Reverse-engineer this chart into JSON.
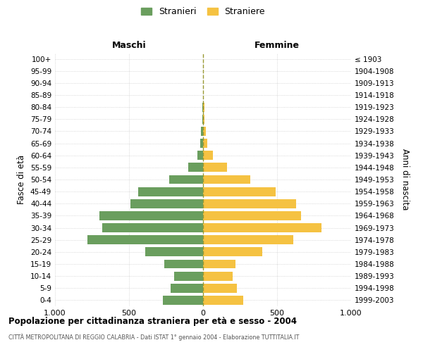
{
  "age_groups": [
    "100+",
    "95-99",
    "90-94",
    "85-89",
    "80-84",
    "75-79",
    "70-74",
    "65-69",
    "60-64",
    "55-59",
    "50-54",
    "45-49",
    "40-44",
    "35-39",
    "30-34",
    "25-29",
    "20-24",
    "15-19",
    "10-14",
    "5-9",
    "0-4"
  ],
  "birth_years": [
    "≤ 1903",
    "1904-1908",
    "1909-1913",
    "1914-1918",
    "1919-1923",
    "1924-1928",
    "1929-1933",
    "1934-1938",
    "1939-1943",
    "1944-1948",
    "1949-1953",
    "1954-1958",
    "1959-1963",
    "1964-1968",
    "1969-1973",
    "1974-1978",
    "1979-1983",
    "1984-1988",
    "1989-1993",
    "1994-1998",
    "1999-2003"
  ],
  "maschi": [
    0,
    0,
    0,
    0,
    5,
    7,
    15,
    20,
    40,
    100,
    230,
    440,
    490,
    700,
    680,
    780,
    390,
    260,
    195,
    220,
    270
  ],
  "femmine": [
    0,
    0,
    0,
    0,
    8,
    10,
    20,
    30,
    65,
    160,
    320,
    490,
    630,
    660,
    800,
    610,
    400,
    220,
    200,
    230,
    270
  ],
  "male_color": "#6a9e5e",
  "female_color": "#f5c242",
  "dashed_line_color": "#999933",
  "grid_color": "#cccccc",
  "bg_color": "#ffffff",
  "xlim": 1000,
  "title": "Popolazione per cittadinanza straniera per età e sesso - 2004",
  "subtitle": "CITTÀ METROPOLITANA DI REGGIO CALABRIA - Dati ISTAT 1° gennaio 2004 - Elaborazione TUTTITALIA.IT",
  "ylabel_left": "Fasce di età",
  "ylabel_right": "Anni di nascita",
  "maschi_label": "Maschi",
  "femmine_label": "Femmine",
  "legend_stranieri": "Stranieri",
  "legend_straniere": "Straniere"
}
